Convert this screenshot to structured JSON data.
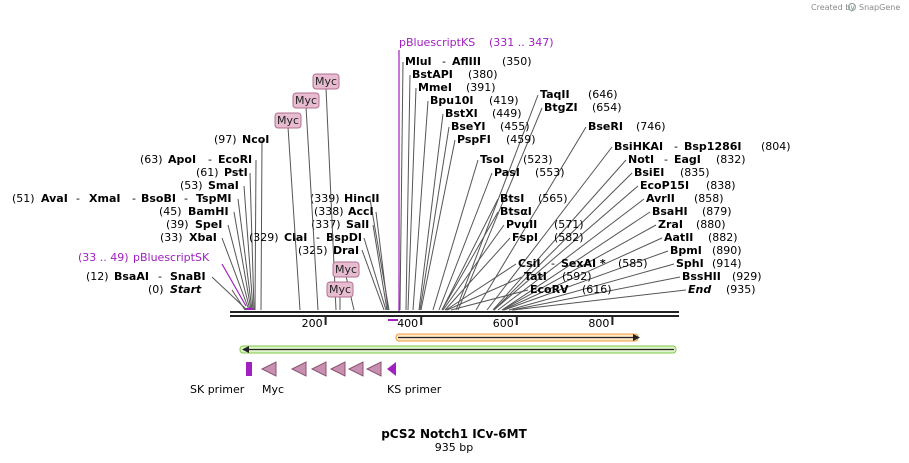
{
  "header": {
    "credit": "Created by",
    "brand": "SnapGene"
  },
  "plasmid": {
    "name": "pCS2 Notch1 ICv-6MT",
    "length_label": "935 bp"
  },
  "ruler": {
    "ticks": [
      {
        "label": "200",
        "pos": 200
      },
      {
        "label": "400",
        "pos": 400
      },
      {
        "label": "600",
        "pos": 600
      },
      {
        "label": "800",
        "pos": 800
      }
    ]
  },
  "primer_bindings": [
    {
      "name": "pBluescriptKS",
      "range": "(331 .. 347)"
    },
    {
      "name": "pBluescriptSK",
      "range": "(33 .. 49)"
    }
  ],
  "sites_left": [
    {
      "pos": "(0)",
      "names": [
        "Start"
      ],
      "italic": true
    },
    {
      "pos": "(12)",
      "names": [
        "BsaAI",
        "SnaBI"
      ]
    },
    {
      "pos": "(33)",
      "names": [
        "XbaI"
      ]
    },
    {
      "pos": "(39)",
      "names": [
        "SpeI"
      ]
    },
    {
      "pos": "(45)",
      "names": [
        "BamHI"
      ]
    },
    {
      "pos": "(51)",
      "names": [
        "AvaI",
        "XmaI",
        "BsoBI",
        "TspMI"
      ]
    },
    {
      "pos": "(53)",
      "names": [
        "SmaI"
      ]
    },
    {
      "pos": "(61)",
      "names": [
        "PstI"
      ]
    },
    {
      "pos": "(63)",
      "names": [
        "ApoI",
        "EcoRI"
      ]
    },
    {
      "pos": "(97)",
      "names": [
        "NcoI"
      ]
    }
  ],
  "sites_middle": [
    {
      "pos": "(329)",
      "names": [
        "ClaI",
        "BspDI"
      ]
    },
    {
      "pos": "(325)",
      "names": [
        "DraI"
      ]
    },
    {
      "pos": "(337)",
      "names": [
        "SalI"
      ]
    },
    {
      "pos": "(338)",
      "names": [
        "AccI"
      ]
    },
    {
      "pos": "(339)",
      "names": [
        "HincII"
      ]
    }
  ],
  "sites_right": [
    {
      "pos": "(350)",
      "names": [
        "MluI",
        "AflIII"
      ]
    },
    {
      "pos": "(380)",
      "names": [
        "BstAPI"
      ]
    },
    {
      "pos": "(391)",
      "names": [
        "MmeI"
      ]
    },
    {
      "pos": "(419)",
      "names": [
        "Bpu10I"
      ]
    },
    {
      "pos": "(449)",
      "names": [
        "BstXI"
      ]
    },
    {
      "pos": "(455)",
      "names": [
        "BseYI"
      ]
    },
    {
      "pos": "(459)",
      "names": [
        "PspFI"
      ]
    },
    {
      "pos": "(523)",
      "names": [
        "TsoI"
      ]
    },
    {
      "pos": "(553)",
      "names": [
        "PasI"
      ]
    },
    {
      "pos": "(565)",
      "names": [
        "BtsI"
      ]
    },
    {
      "pos": "",
      "names": [
        "BtsαI"
      ]
    },
    {
      "pos": "(571)",
      "names": [
        "PvuII"
      ]
    },
    {
      "pos": "(582)",
      "names": [
        "FspI"
      ]
    },
    {
      "pos": "(585)",
      "names": [
        "CsiI",
        "SexAI *"
      ]
    },
    {
      "pos": "(592)",
      "names": [
        "TatI"
      ]
    },
    {
      "pos": "(616)",
      "names": [
        "EcoRV"
      ]
    },
    {
      "pos": "(646)",
      "names": [
        "TaqII"
      ]
    },
    {
      "pos": "(654)",
      "names": [
        "BtgZI"
      ]
    },
    {
      "pos": "(746)",
      "names": [
        "BseRI"
      ]
    },
    {
      "pos": "(804)",
      "names": [
        "BsiHKAI",
        "Bsp1286I"
      ]
    },
    {
      "pos": "(832)",
      "names": [
        "NotI",
        "EagI"
      ]
    },
    {
      "pos": "(835)",
      "names": [
        "BsiEI"
      ]
    },
    {
      "pos": "(838)",
      "names": [
        "EcoP15I"
      ]
    },
    {
      "pos": "(858)",
      "names": [
        "AvrII"
      ]
    },
    {
      "pos": "(879)",
      "names": [
        "BsaHI"
      ]
    },
    {
      "pos": "(880)",
      "names": [
        "ZraI"
      ]
    },
    {
      "pos": "(882)",
      "names": [
        "AatII"
      ]
    },
    {
      "pos": "(890)",
      "names": [
        "BpmI"
      ]
    },
    {
      "pos": "(914)",
      "names": [
        "SphI"
      ]
    },
    {
      "pos": "(929)",
      "names": [
        "BssHII"
      ]
    },
    {
      "pos": "(935)",
      "names": [
        "End"
      ],
      "italic": true
    }
  ],
  "myc_tags": [
    "Myc",
    "Myc",
    "Myc",
    "Myc",
    "Myc"
  ],
  "features": {
    "sk_primer": "SK primer",
    "myc": "Myc",
    "ks_primer": "KS primer"
  },
  "colors": {
    "primer": "#a020c0",
    "myc_fill": "#e8bcd0",
    "myc_stroke": "#b07090",
    "orf_orange": "#f39a3c",
    "orf_green": "#7ec84a",
    "backbone": "#222222"
  }
}
